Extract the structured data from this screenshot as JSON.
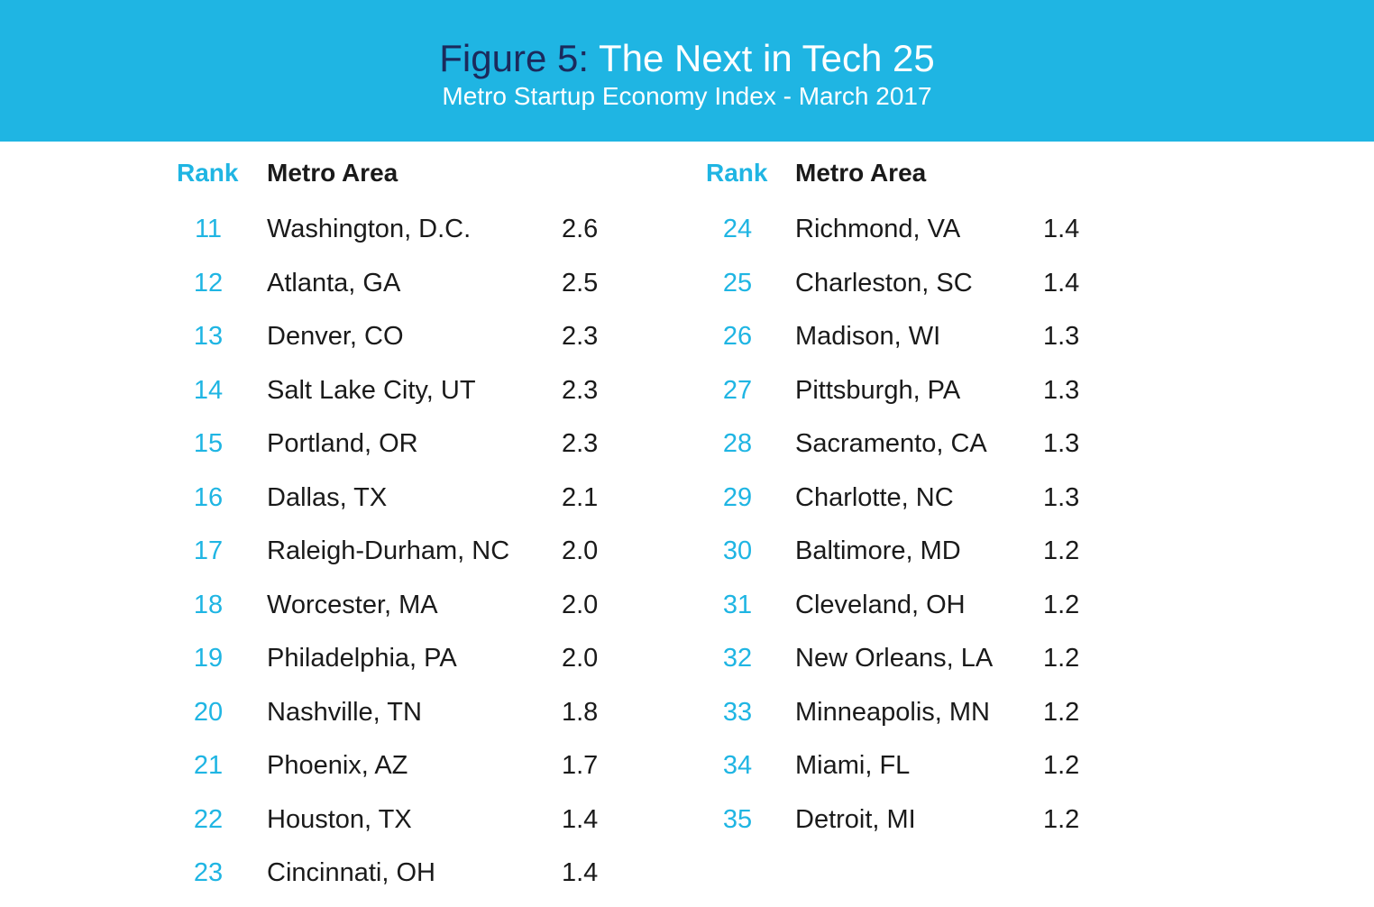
{
  "header": {
    "title_prefix": "Figure 5:",
    "title_main": " The Next in Tech 25",
    "subtitle": "Metro Startup Economy Index - March 2017"
  },
  "colors": {
    "banner": "#1fb5e3",
    "title_prefix": "#1b2a5c",
    "rank_text": "#1fb5e3",
    "body_text": "#1a1a1a"
  },
  "chart_data": {
    "type": "table",
    "title": "Figure 5: The Next in Tech 25",
    "subtitle": "Metro Startup Economy Index - March 2017",
    "columns": [
      "Rank",
      "Metro Area",
      ""
    ],
    "left_table": {
      "header_rank": "Rank",
      "header_metro": "Metro Area",
      "rows": [
        {
          "rank": "11",
          "metro": "Washington, D.C.",
          "score": "2.6"
        },
        {
          "rank": "12",
          "metro": "Atlanta, GA",
          "score": "2.5"
        },
        {
          "rank": "13",
          "metro": "Denver, CO",
          "score": "2.3"
        },
        {
          "rank": "14",
          "metro": "Salt Lake City, UT",
          "score": "2.3"
        },
        {
          "rank": "15",
          "metro": "Portland, OR",
          "score": "2.3"
        },
        {
          "rank": "16",
          "metro": "Dallas, TX",
          "score": "2.1"
        },
        {
          "rank": "17",
          "metro": "Raleigh-Durham, NC",
          "score": "2.0"
        },
        {
          "rank": "18",
          "metro": "Worcester, MA",
          "score": "2.0"
        },
        {
          "rank": "19",
          "metro": "Philadelphia, PA",
          "score": "2.0"
        },
        {
          "rank": "20",
          "metro": "Nashville, TN",
          "score": "1.8"
        },
        {
          "rank": "21",
          "metro": "Phoenix, AZ",
          "score": "1.7"
        },
        {
          "rank": "22",
          "metro": "Houston, TX",
          "score": "1.4"
        },
        {
          "rank": "23",
          "metro": "Cincinnati, OH",
          "score": "1.4"
        }
      ]
    },
    "right_table": {
      "header_rank": "Rank",
      "header_metro": "Metro Area",
      "rows": [
        {
          "rank": "24",
          "metro": "Richmond, VA",
          "score": "1.4"
        },
        {
          "rank": "25",
          "metro": "Charleston, SC",
          "score": "1.4"
        },
        {
          "rank": "26",
          "metro": "Madison, WI",
          "score": "1.3"
        },
        {
          "rank": "27",
          "metro": "Pittsburgh, PA",
          "score": "1.3"
        },
        {
          "rank": "28",
          "metro": "Sacramento, CA",
          "score": "1.3"
        },
        {
          "rank": "29",
          "metro": "Charlotte, NC",
          "score": "1.3"
        },
        {
          "rank": "30",
          "metro": "Baltimore, MD",
          "score": "1.2"
        },
        {
          "rank": "31",
          "metro": "Cleveland, OH",
          "score": "1.2"
        },
        {
          "rank": "32",
          "metro": "New Orleans, LA",
          "score": "1.2"
        },
        {
          "rank": "33",
          "metro": "Minneapolis, MN",
          "score": "1.2"
        },
        {
          "rank": "34",
          "metro": "Miami, FL",
          "score": "1.2"
        },
        {
          "rank": "35",
          "metro": "Detroit, MI",
          "score": "1.2"
        }
      ]
    }
  }
}
